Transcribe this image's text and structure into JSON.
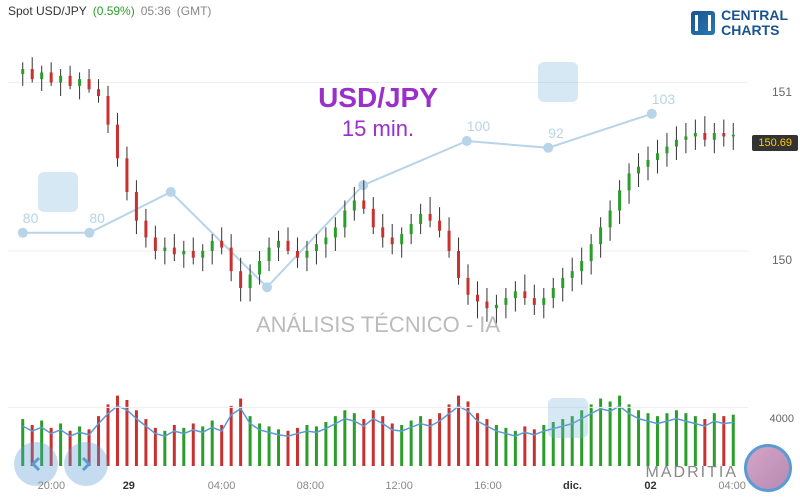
{
  "header": {
    "spot": "Spot USD/JPY",
    "pct": "(0.59%)",
    "time": "05:36",
    "tz": "(GMT)"
  },
  "logo": {
    "line1": "CENTRAL",
    "line2": "CHARTS"
  },
  "title": {
    "pair": "USD/JPY",
    "tf": "15 min."
  },
  "watermark": "ANÁLISIS TÉCNICO - IA",
  "brand": "MADRITIA",
  "price_chart": {
    "type": "candlestick",
    "ylim": [
      149.4,
      151.3
    ],
    "yticks": [
      150,
      151
    ],
    "current_price": 150.69,
    "colors": {
      "up": "#2a9d2a",
      "down": "#c93030",
      "wick": "#333",
      "grid": "#eeeeee",
      "bg": "#ffffff"
    },
    "xlabels": [
      {
        "x": 0.04,
        "text": "20:00"
      },
      {
        "x": 0.155,
        "text": "29",
        "bold": true
      },
      {
        "x": 0.27,
        "text": "04:00"
      },
      {
        "x": 0.39,
        "text": "08:00"
      },
      {
        "x": 0.51,
        "text": "12:00"
      },
      {
        "x": 0.63,
        "text": "16:00"
      },
      {
        "x": 0.75,
        "text": "dic.",
        "bold": true
      },
      {
        "x": 0.86,
        "text": "02",
        "bold": true
      },
      {
        "x": 0.96,
        "text": "04:00"
      }
    ],
    "bg_line": {
      "points": [
        [
          0.02,
          0.62
        ],
        [
          0.11,
          0.62
        ],
        [
          0.22,
          0.5
        ],
        [
          0.35,
          0.78
        ],
        [
          0.48,
          0.48
        ],
        [
          0.62,
          0.35
        ],
        [
          0.73,
          0.37
        ],
        [
          0.87,
          0.27
        ]
      ],
      "labels": [
        {
          "x": 0.02,
          "y": 0.62,
          "v": "80"
        },
        {
          "x": 0.11,
          "y": 0.62,
          "v": "80"
        },
        {
          "x": 0.62,
          "y": 0.35,
          "v": "100"
        },
        {
          "x": 0.73,
          "y": 0.37,
          "v": "92"
        },
        {
          "x": 0.87,
          "y": 0.27,
          "v": "103"
        }
      ],
      "color": "#b8d4e8"
    },
    "candles": [
      [
        151.05,
        151.12,
        150.98,
        151.08
      ],
      [
        151.08,
        151.15,
        151.0,
        151.02
      ],
      [
        151.02,
        151.1,
        150.95,
        151.06
      ],
      [
        151.06,
        151.12,
        150.98,
        151.0
      ],
      [
        151.0,
        151.08,
        150.92,
        151.04
      ],
      [
        151.04,
        151.1,
        150.96,
        150.98
      ],
      [
        150.98,
        151.06,
        150.9,
        151.02
      ],
      [
        151.02,
        151.08,
        150.94,
        150.96
      ],
      [
        150.96,
        151.02,
        150.88,
        150.92
      ],
      [
        150.92,
        150.98,
        150.7,
        150.75
      ],
      [
        150.75,
        150.82,
        150.5,
        150.55
      ],
      [
        150.55,
        150.62,
        150.3,
        150.35
      ],
      [
        150.35,
        150.42,
        150.1,
        150.18
      ],
      [
        150.18,
        150.25,
        150.02,
        150.08
      ],
      [
        150.08,
        150.15,
        149.95,
        150.0
      ],
      [
        150.0,
        150.08,
        149.92,
        150.02
      ],
      [
        150.02,
        150.1,
        149.94,
        149.98
      ],
      [
        149.98,
        150.06,
        149.9,
        150.0
      ],
      [
        150.0,
        150.08,
        149.92,
        149.96
      ],
      [
        149.96,
        150.04,
        149.88,
        150.0
      ],
      [
        150.0,
        150.1,
        149.92,
        150.06
      ],
      [
        150.06,
        150.14,
        149.98,
        150.02
      ],
      [
        150.02,
        150.1,
        149.82,
        149.88
      ],
      [
        149.88,
        149.96,
        149.7,
        149.78
      ],
      [
        149.78,
        149.92,
        149.7,
        149.86
      ],
      [
        149.86,
        150.0,
        149.8,
        149.94
      ],
      [
        149.94,
        150.08,
        149.88,
        150.02
      ],
      [
        150.02,
        150.12,
        149.94,
        150.06
      ],
      [
        150.06,
        150.14,
        149.98,
        150.0
      ],
      [
        150.0,
        150.08,
        149.9,
        149.96
      ],
      [
        149.96,
        150.06,
        149.88,
        150.0
      ],
      [
        150.0,
        150.1,
        149.92,
        150.04
      ],
      [
        150.04,
        150.14,
        149.96,
        150.08
      ],
      [
        150.08,
        150.2,
        150.0,
        150.14
      ],
      [
        150.14,
        150.3,
        150.08,
        150.24
      ],
      [
        150.24,
        150.38,
        150.18,
        150.3
      ],
      [
        150.3,
        150.42,
        150.22,
        150.25
      ],
      [
        150.25,
        150.32,
        150.1,
        150.14
      ],
      [
        150.14,
        150.22,
        150.02,
        150.08
      ],
      [
        150.08,
        150.16,
        149.98,
        150.04
      ],
      [
        150.04,
        150.14,
        149.96,
        150.1
      ],
      [
        150.1,
        150.22,
        150.04,
        150.16
      ],
      [
        150.16,
        150.28,
        150.1,
        150.22
      ],
      [
        150.22,
        150.32,
        150.14,
        150.18
      ],
      [
        150.18,
        150.26,
        150.08,
        150.12
      ],
      [
        150.12,
        150.2,
        149.96,
        150.0
      ],
      [
        150.0,
        150.08,
        149.8,
        149.84
      ],
      [
        149.84,
        149.92,
        149.68,
        149.74
      ],
      [
        149.74,
        149.82,
        149.6,
        149.7
      ],
      [
        149.7,
        149.78,
        149.58,
        149.66
      ],
      [
        149.66,
        149.74,
        149.56,
        149.68
      ],
      [
        149.68,
        149.78,
        149.6,
        149.72
      ],
      [
        149.72,
        149.82,
        149.64,
        149.76
      ],
      [
        149.76,
        149.86,
        149.68,
        149.72
      ],
      [
        149.72,
        149.8,
        149.62,
        149.68
      ],
      [
        149.68,
        149.78,
        149.6,
        149.72
      ],
      [
        149.72,
        149.84,
        149.66,
        149.78
      ],
      [
        149.78,
        149.9,
        149.7,
        149.84
      ],
      [
        149.84,
        149.96,
        149.76,
        149.88
      ],
      [
        149.88,
        150.02,
        149.8,
        149.94
      ],
      [
        149.94,
        150.1,
        149.86,
        150.04
      ],
      [
        150.04,
        150.2,
        149.96,
        150.14
      ],
      [
        150.14,
        150.3,
        150.06,
        150.24
      ],
      [
        150.24,
        150.42,
        150.16,
        150.36
      ],
      [
        150.36,
        150.52,
        150.28,
        150.46
      ],
      [
        150.46,
        150.58,
        150.38,
        150.5
      ],
      [
        150.5,
        150.62,
        150.42,
        150.54
      ],
      [
        150.54,
        150.66,
        150.46,
        150.58
      ],
      [
        150.58,
        150.7,
        150.5,
        150.62
      ],
      [
        150.62,
        150.74,
        150.54,
        150.66
      ],
      [
        150.66,
        150.76,
        150.58,
        150.68
      ],
      [
        150.68,
        150.78,
        150.6,
        150.7
      ],
      [
        150.7,
        150.8,
        150.62,
        150.66
      ],
      [
        150.66,
        150.76,
        150.58,
        150.7
      ],
      [
        150.7,
        150.78,
        150.62,
        150.68
      ],
      [
        150.68,
        150.76,
        150.6,
        150.69
      ]
    ]
  },
  "volume_chart": {
    "type": "bar+line",
    "ytick": 4000,
    "ylim": [
      0,
      6000
    ],
    "colors": {
      "up": "#2a9d2a",
      "down": "#c93030",
      "line": "#5a9bd4"
    },
    "bars": [
      3200,
      2800,
      3100,
      2600,
      2900,
      2400,
      2700,
      2500,
      3400,
      4200,
      4800,
      4500,
      3800,
      3200,
      2600,
      2400,
      2800,
      2600,
      2900,
      2700,
      3100,
      2800,
      4100,
      4600,
      3400,
      2900,
      2700,
      2500,
      2400,
      2600,
      2800,
      2700,
      3000,
      3400,
      3800,
      3600,
      3200,
      3800,
      3400,
      2900,
      2800,
      3100,
      3400,
      3200,
      3600,
      4200,
      4800,
      4400,
      3600,
      3200,
      2800,
      2600,
      2400,
      2700,
      2500,
      2800,
      3000,
      3200,
      3400,
      3800,
      4200,
      4600,
      4400,
      4800,
      4200,
      3800,
      3600,
      3400,
      3600,
      3800,
      3600,
      3400,
      3200,
      3600,
      3400,
      3500
    ]
  }
}
